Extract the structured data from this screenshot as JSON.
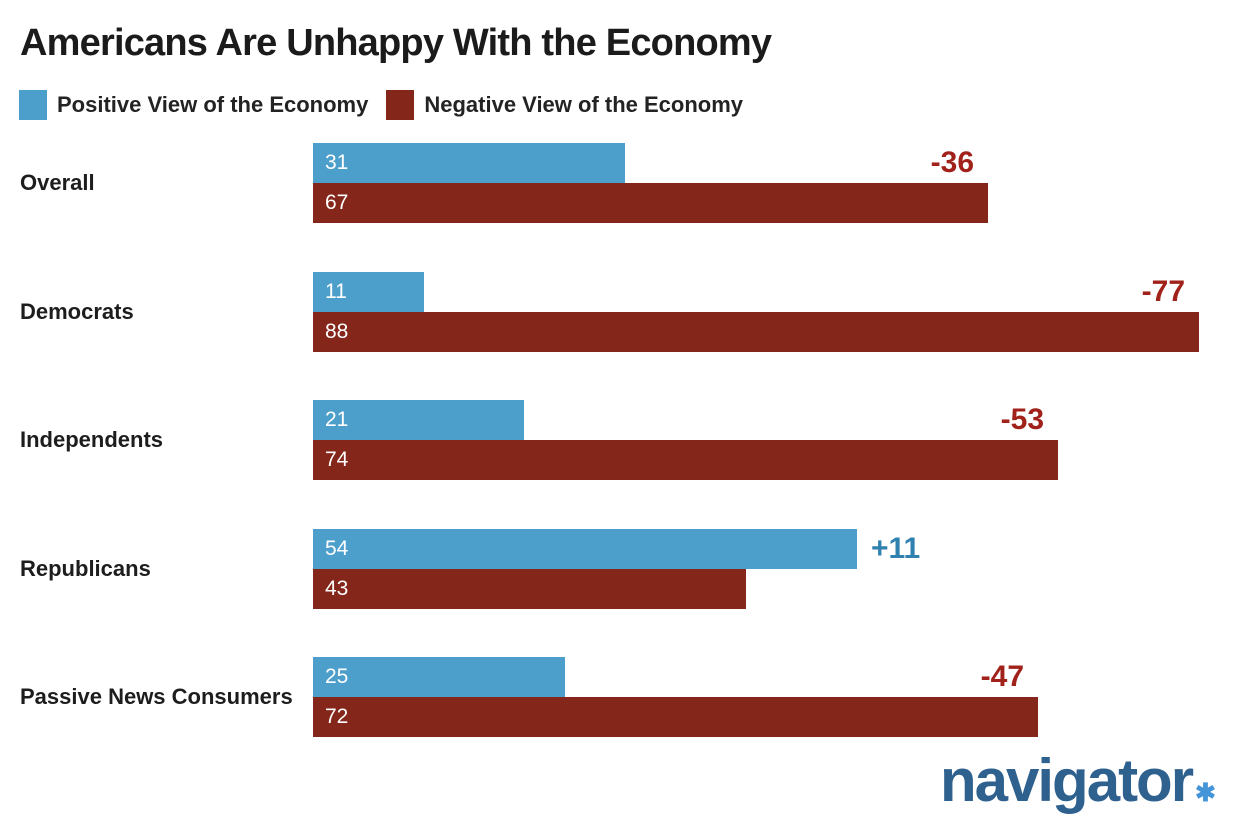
{
  "title": "Americans Are Unhappy With the Economy",
  "background_color": "#ffffff",
  "legend": {
    "positive": {
      "label": "Positive View of the Economy",
      "color": "#4d9fcb"
    },
    "negative": {
      "label": "Negative View of the Economy",
      "color": "#84261a"
    }
  },
  "chart_data": {
    "type": "bar",
    "orientation": "horizontal",
    "title": "Americans Are Unhappy With the Economy",
    "categories": [
      "Overall",
      "Democrats",
      "Independents",
      "Republicans",
      "Passive News Consumers"
    ],
    "series": [
      {
        "name": "Positive View of the Economy",
        "color": "#4d9fcb",
        "values": [
          31,
          11,
          21,
          54,
          25
        ]
      },
      {
        "name": "Negative View of the Economy",
        "color": "#84261a",
        "values": [
          67,
          88,
          74,
          43,
          72
        ]
      }
    ],
    "net_labels": [
      {
        "category": "Overall",
        "text": "-36",
        "sign": "negative"
      },
      {
        "category": "Democrats",
        "text": "-77",
        "sign": "negative"
      },
      {
        "category": "Independents",
        "text": "-53",
        "sign": "negative"
      },
      {
        "category": "Republicans",
        "text": "+11",
        "sign": "positive"
      },
      {
        "category": "Passive News Consumers",
        "text": "-47",
        "sign": "negative"
      }
    ],
    "net_label_colors": {
      "positive": "#2f81b0",
      "negative": "#a0221a"
    },
    "value_labels": "inside-bar-left, white",
    "xlim": [
      0,
      100
    ],
    "grid": false,
    "legend_position": "top-left"
  },
  "logo": {
    "text": "navigator",
    "mark": "✱"
  }
}
